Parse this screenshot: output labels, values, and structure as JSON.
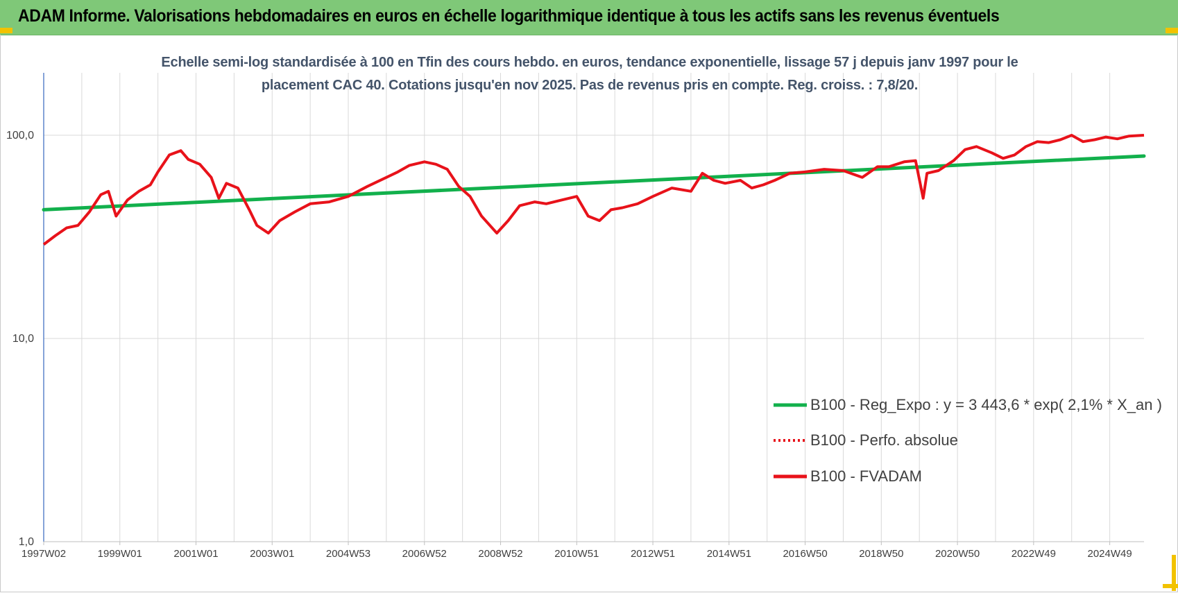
{
  "banner": {
    "title": "ADAM Informe. Valorisations hebdomadaires en euros en échelle logarithmique identique à tous les actifs sans les revenus éventuels"
  },
  "colors": {
    "banner_bg": "#7fc878",
    "regression": "#12b04c",
    "fvadam": "#e8121a",
    "perfo": "#e8121a",
    "title_text": "#44546a",
    "axis_line": "#4472c4",
    "grid": "#d9d9d9"
  },
  "chart_data": {
    "type": "line",
    "title_line1": "Echelle semi-log standardisée à 100 en Tfin des cours hebdo. en euros, tendance exponentielle, lissage 57 j depuis janv 1997 pour le",
    "title_line2": "placement CAC 40. Cotations jusqu'en nov 2025.  Pas de revenus pris en compte. Reg. croiss. : 7,8/20.",
    "y_scale": "log",
    "ylim": [
      1,
      200
    ],
    "y_ticks": [
      {
        "value": 100,
        "label": "100,0"
      },
      {
        "value": 10,
        "label": "10,0"
      },
      {
        "value": 1,
        "label": "1,0"
      }
    ],
    "xlim": [
      1997.0,
      2025.9
    ],
    "x_ticks": [
      {
        "value": 1997.0,
        "label": "1997W02"
      },
      {
        "value": 1999.0,
        "label": "1999W01"
      },
      {
        "value": 2001.0,
        "label": "2001W01"
      },
      {
        "value": 2003.0,
        "label": "2003W01"
      },
      {
        "value": 2005.0,
        "label": "2004W53"
      },
      {
        "value": 2007.0,
        "label": "2006W52"
      },
      {
        "value": 2009.0,
        "label": "2008W52"
      },
      {
        "value": 2011.0,
        "label": "2010W51"
      },
      {
        "value": 2013.0,
        "label": "2012W51"
      },
      {
        "value": 2015.0,
        "label": "2014W51"
      },
      {
        "value": 2017.0,
        "label": "2016W50"
      },
      {
        "value": 2019.0,
        "label": "2018W50"
      },
      {
        "value": 2021.0,
        "label": "2020W50"
      },
      {
        "value": 2023.0,
        "label": "2022W49"
      },
      {
        "value": 2025.0,
        "label": "2024W49"
      }
    ],
    "grid": "vertical and horizontal",
    "legend_position": "bottom-right",
    "series": [
      {
        "name": "B100 - Reg_Expo : y = 3 443,6 * exp( 2,1% *  X_an )",
        "style": "solid-thick",
        "x": [
          1997.0,
          2025.9
        ],
        "y": [
          43,
          79
        ]
      },
      {
        "name": "B100 - Perfo. absolue",
        "style": "dotted",
        "x": [],
        "y": []
      },
      {
        "name": "B100 - FVADAM",
        "style": "solid-thick",
        "x": [
          1997.0,
          1997.3,
          1997.6,
          1997.9,
          1998.2,
          1998.5,
          1998.7,
          1998.9,
          1999.2,
          1999.5,
          1999.8,
          2000.0,
          2000.3,
          2000.6,
          2000.8,
          2001.1,
          2001.4,
          2001.6,
          2001.8,
          2002.1,
          2002.4,
          2002.6,
          2002.9,
          2003.2,
          2003.6,
          2004.0,
          2004.5,
          2005.0,
          2005.5,
          2006.0,
          2006.3,
          2006.6,
          2007.0,
          2007.3,
          2007.6,
          2007.9,
          2008.2,
          2008.5,
          2008.9,
          2009.2,
          2009.5,
          2009.9,
          2010.2,
          2010.6,
          2011.0,
          2011.3,
          2011.6,
          2011.9,
          2012.2,
          2012.6,
          2013.0,
          2013.5,
          2014.0,
          2014.3,
          2014.6,
          2014.9,
          2015.3,
          2015.6,
          2015.9,
          2016.2,
          2016.6,
          2017.0,
          2017.5,
          2018.0,
          2018.5,
          2018.9,
          2019.2,
          2019.6,
          2019.9,
          2020.1,
          2020.2,
          2020.5,
          2020.9,
          2021.2,
          2021.5,
          2021.9,
          2022.2,
          2022.5,
          2022.8,
          2023.1,
          2023.4,
          2023.7,
          2024.0,
          2024.3,
          2024.6,
          2024.9,
          2025.2,
          2025.5,
          2025.9
        ],
        "y": [
          29,
          32,
          35,
          36,
          42,
          51,
          53,
          40,
          48,
          53,
          57,
          66,
          80,
          84,
          76,
          72,
          62,
          49,
          58,
          55,
          43,
          36,
          33,
          38,
          42,
          46,
          47,
          50,
          56,
          62,
          66,
          71,
          74,
          72,
          68,
          56,
          50,
          40,
          33,
          38,
          45,
          47,
          46,
          48,
          50,
          40,
          38,
          43,
          44,
          46,
          50,
          55,
          53,
          65,
          60,
          58,
          60,
          55,
          57,
          60,
          65,
          66,
          68,
          67,
          62,
          70,
          70,
          74,
          75,
          49,
          65,
          67,
          75,
          85,
          88,
          82,
          77,
          80,
          88,
          93,
          92,
          95,
          100,
          93,
          95,
          98,
          96,
          99,
          100
        ]
      }
    ],
    "annotation_fvadam_label": "B100 - FVADAM"
  }
}
